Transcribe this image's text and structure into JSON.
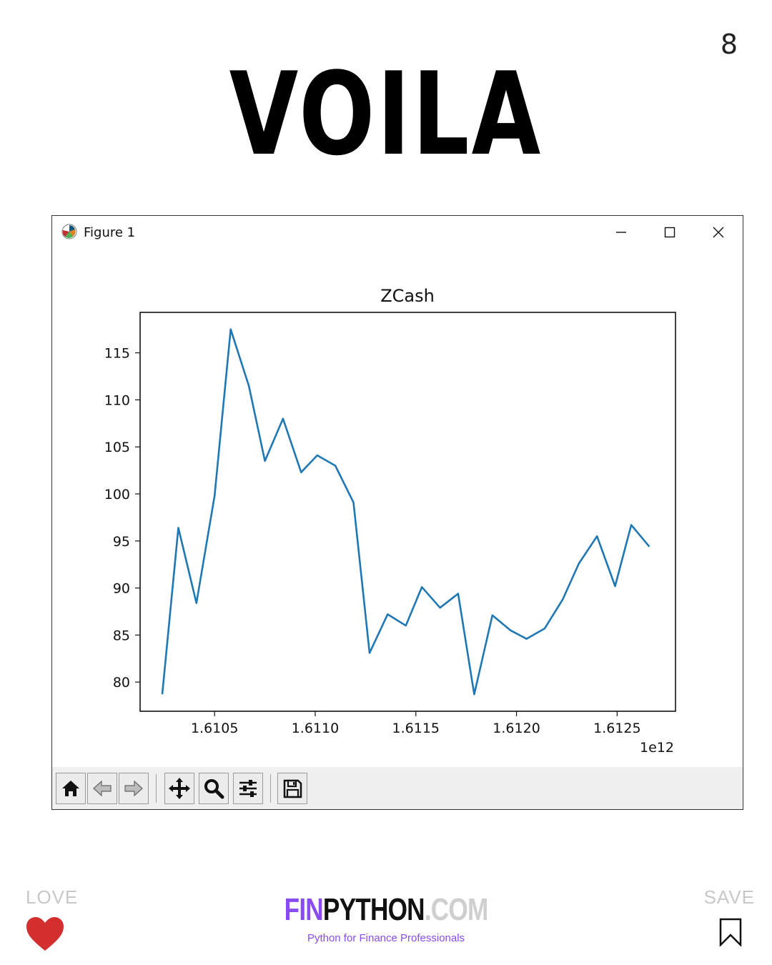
{
  "page": {
    "number": "8",
    "heading": "VOILA"
  },
  "window": {
    "title": "Figure 1",
    "controls": {
      "minimize": "minimize-icon",
      "maximize": "maximize-icon",
      "close": "close-icon"
    }
  },
  "chart_data": {
    "type": "line",
    "title": "ZCash",
    "xlabel": "",
    "ylabel": "",
    "x_offset_label": "1e12",
    "x_ticks": [
      1.6105,
      1.611,
      1.6115,
      1.612,
      1.6125
    ],
    "x_tick_labels": [
      "1.6105",
      "1.6110",
      "1.6115",
      "1.6120",
      "1.6125"
    ],
    "y_ticks": [
      80,
      85,
      90,
      95,
      100,
      105,
      110,
      115
    ],
    "y_tick_labels": [
      "80",
      "85",
      "90",
      "95",
      "100",
      "105",
      "110",
      "115"
    ],
    "xlim": [
      1.61013,
      1.61279
    ],
    "ylim": [
      76.9,
      119.3
    ],
    "grid": false,
    "line_color": "#1f77b4",
    "series": [
      {
        "x": [
          1.61024,
          1.61032,
          1.61041,
          1.6105,
          1.61058,
          1.61067,
          1.61075,
          1.61084,
          1.61093,
          1.61101,
          1.6111,
          1.61119,
          1.61127,
          1.61136,
          1.61145,
          1.61153,
          1.61162,
          1.61171,
          1.61179,
          1.61188,
          1.61197,
          1.61205,
          1.61214,
          1.61223,
          1.61231,
          1.6124,
          1.61249,
          1.61257,
          1.61266
        ],
        "y": [
          78.7,
          96.4,
          88.4,
          99.8,
          117.5,
          111.5,
          103.5,
          108.0,
          102.3,
          104.1,
          103.0,
          99.1,
          83.1,
          87.2,
          86.0,
          90.1,
          87.9,
          89.4,
          78.7,
          87.1,
          85.5,
          84.6,
          85.7,
          88.8,
          92.6,
          95.5,
          90.2,
          96.7,
          94.4
        ]
      }
    ]
  },
  "toolbar": {
    "icons": [
      "home-icon",
      "back-arrow-icon",
      "forward-arrow-icon",
      "pan-icon",
      "zoom-icon",
      "configure-subplots-icon",
      "save-figure-icon"
    ]
  },
  "footer": {
    "love_label": "LOVE",
    "save_label": "SAVE",
    "brand_fin": "FIN",
    "brand_python": "PYTHON",
    "brand_com": ".COM",
    "tagline": "Python for Finance Professionals",
    "heart_color": "#d32f2f",
    "accent_color": "#8a4cf0"
  }
}
